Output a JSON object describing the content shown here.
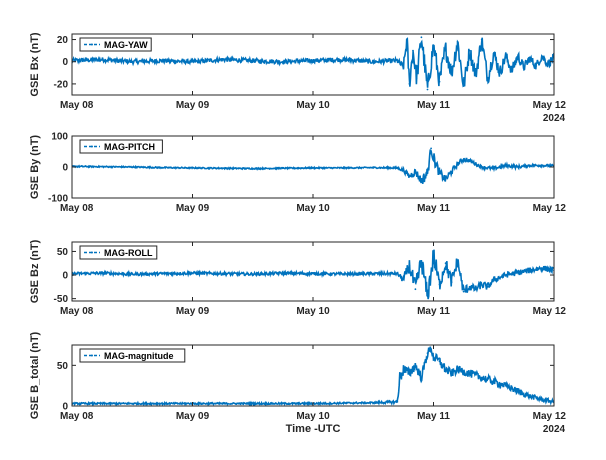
{
  "figure": {
    "xlabel": "Time -UTC",
    "year_label": "2024",
    "x_tick_labels": [
      "May 08",
      "May 09",
      "May 10",
      "May 11",
      "May 12"
    ]
  },
  "chart_data": [
    {
      "type": "line",
      "ylabel": "GSE Bx (nT)",
      "legend": "MAG-YAW",
      "legend_position": "top-left",
      "color": "#0072BD",
      "xlim": [
        "2024-05-08",
        "2024-05-12"
      ],
      "ylim": [
        -30,
        25
      ],
      "yticks": [
        -20,
        0,
        20
      ],
      "x_days": [
        0,
        0.25,
        0.5,
        0.75,
        1.0,
        1.25,
        1.5,
        1.75,
        2.0,
        2.25,
        2.5,
        2.7,
        2.75,
        2.78,
        2.8,
        2.83,
        2.86,
        2.9,
        2.95,
        3.0,
        3.05,
        3.1,
        3.15,
        3.2,
        3.25,
        3.3,
        3.35,
        3.4,
        3.45,
        3.5,
        3.55,
        3.6,
        3.65,
        3.7,
        3.75,
        3.8,
        3.85,
        3.9,
        3.95,
        4.0
      ],
      "values": [
        1,
        2,
        0,
        1,
        0,
        2,
        1,
        0,
        1,
        2,
        0,
        1,
        -5,
        20,
        -20,
        10,
        -15,
        22,
        -25,
        15,
        -18,
        12,
        -10,
        18,
        -22,
        10,
        -12,
        20,
        -15,
        8,
        -10,
        5,
        -8,
        5,
        -5,
        3,
        -4,
        5,
        -2,
        4
      ],
      "envelope": [
        2,
        2,
        2,
        2,
        2,
        2,
        2,
        2,
        2,
        2,
        2,
        2,
        4,
        6,
        8,
        8,
        8,
        9,
        9,
        9,
        8,
        8,
        8,
        8,
        8,
        7,
        7,
        7,
        7,
        6,
        6,
        5,
        5,
        5,
        4,
        4,
        4,
        4,
        4,
        4
      ]
    },
    {
      "type": "line",
      "ylabel": "GSE By (nT)",
      "legend": "MAG-PITCH",
      "legend_position": "top-left",
      "color": "#0072BD",
      "xlim": [
        "2024-05-08",
        "2024-05-12"
      ],
      "ylim": [
        -100,
        100
      ],
      "yticks": [
        -100,
        0,
        100
      ],
      "x_days": [
        0,
        0.25,
        0.5,
        0.75,
        1.0,
        1.25,
        1.5,
        1.75,
        2.0,
        2.25,
        2.5,
        2.7,
        2.75,
        2.8,
        2.85,
        2.9,
        2.95,
        2.98,
        3.0,
        3.05,
        3.1,
        3.15,
        3.2,
        3.25,
        3.3,
        3.35,
        3.4,
        3.5,
        3.6,
        3.7,
        3.8,
        3.9,
        4.0
      ],
      "values": [
        2,
        1,
        0,
        -2,
        -3,
        -4,
        -5,
        -4,
        -3,
        -3,
        -2,
        -3,
        -10,
        -30,
        -15,
        -45,
        -20,
        60,
        30,
        -20,
        -40,
        -15,
        10,
        25,
        20,
        10,
        0,
        -5,
        5,
        0,
        5,
        5,
        3
      ],
      "envelope": [
        2,
        2,
        2,
        2,
        2,
        2,
        2,
        2,
        2,
        2,
        2,
        3,
        6,
        10,
        12,
        15,
        20,
        15,
        20,
        15,
        12,
        10,
        8,
        8,
        6,
        6,
        5,
        5,
        5,
        5,
        4,
        4,
        4
      ]
    },
    {
      "type": "line",
      "ylabel": "GSE Bz (nT)",
      "legend": "MAG-ROLL",
      "legend_position": "top-left",
      "color": "#0072BD",
      "xlim": [
        "2024-05-08",
        "2024-05-12"
      ],
      "ylim": [
        -55,
        70
      ],
      "yticks": [
        -50,
        0,
        50
      ],
      "x_days": [
        0,
        0.25,
        0.5,
        0.75,
        1.0,
        1.25,
        1.5,
        1.75,
        2.0,
        2.25,
        2.5,
        2.7,
        2.75,
        2.8,
        2.85,
        2.9,
        2.95,
        3.0,
        3.05,
        3.1,
        3.15,
        3.2,
        3.25,
        3.3,
        3.35,
        3.4,
        3.45,
        3.5,
        3.6,
        3.7,
        3.8,
        3.9,
        4.0
      ],
      "values": [
        3,
        4,
        2,
        3,
        4,
        3,
        2,
        4,
        3,
        2,
        3,
        3,
        -10,
        20,
        -30,
        30,
        -45,
        40,
        -20,
        25,
        -15,
        30,
        -35,
        -25,
        -30,
        -20,
        -25,
        -10,
        0,
        5,
        10,
        15,
        10
      ],
      "envelope": [
        3,
        3,
        3,
        3,
        3,
        3,
        3,
        3,
        3,
        3,
        3,
        3,
        8,
        15,
        20,
        20,
        20,
        25,
        15,
        15,
        15,
        15,
        12,
        8,
        8,
        8,
        8,
        6,
        6,
        6,
        6,
        6,
        6
      ]
    },
    {
      "type": "line",
      "ylabel": "GSE B_total (nT)",
      "legend": "MAG-magnitude",
      "legend_position": "top-left",
      "color": "#0072BD",
      "xlim": [
        "2024-05-08",
        "2024-05-12"
      ],
      "ylim": [
        0,
        75
      ],
      "yticks": [
        0,
        50
      ],
      "x_days": [
        0,
        0.5,
        1.0,
        1.5,
        2.0,
        2.5,
        2.7,
        2.72,
        2.75,
        2.8,
        2.85,
        2.9,
        2.95,
        2.98,
        3.0,
        3.05,
        3.1,
        3.15,
        3.2,
        3.3,
        3.4,
        3.5,
        3.6,
        3.7,
        3.8,
        3.9,
        4.0
      ],
      "values": [
        3,
        3,
        3,
        3,
        3,
        4,
        5,
        35,
        45,
        40,
        50,
        35,
        65,
        70,
        60,
        55,
        45,
        40,
        45,
        40,
        35,
        30,
        25,
        18,
        12,
        8,
        5
      ],
      "envelope": [
        1,
        1,
        1,
        1,
        1,
        1,
        2,
        8,
        8,
        6,
        6,
        6,
        6,
        5,
        6,
        6,
        6,
        5,
        5,
        5,
        5,
        5,
        4,
        4,
        3,
        3,
        2
      ]
    }
  ]
}
